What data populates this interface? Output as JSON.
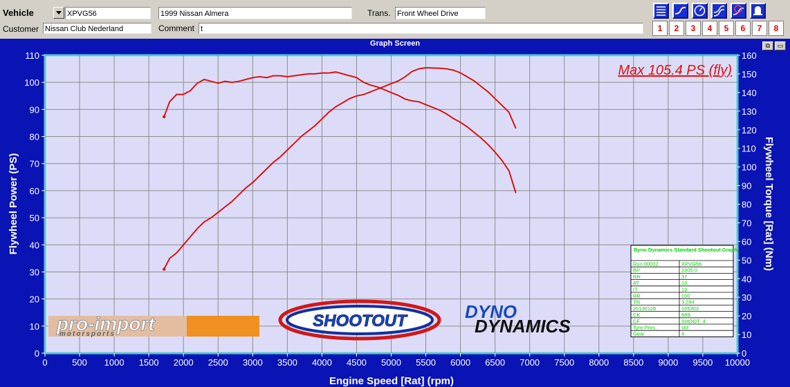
{
  "header": {
    "vehicle_label": "Vehicle",
    "vehicle_value": "XPVG56",
    "description": "1999 Nissan Almera",
    "trans_label": "Trans.",
    "trans_value": "Front Wheel Drive",
    "customer_label": "Customer",
    "customer_value": "Nissan Club Nederland",
    "comment_label": "Comment",
    "comment_value": "t"
  },
  "toolbar": {
    "icons": [
      "menu-lines-icon",
      "curve-icon",
      "gauge-icon",
      "double-curve-icon",
      "stopwatch-curve-icon",
      "bell-icon"
    ],
    "numbers": [
      "1",
      "2",
      "3",
      "4",
      "5",
      "6",
      "7",
      "8"
    ]
  },
  "window": {
    "title": "Graph Screen",
    "restore_btn": "⧉",
    "close_btn": "▭"
  },
  "brands": {
    "proimport": "pro-import",
    "proimport_sub": "motorsports",
    "shootout": "SHOOTOUT",
    "dyno_top": "DYNO",
    "dyno_bottom": "DYNAMICS"
  },
  "colors": {
    "background": "#0a14b4",
    "plot_bg": "#dcdcf8",
    "plot_border": "#4ce8f0",
    "curve": "#dd1111",
    "axis_text": "#ffffff",
    "info_text": "#00d000"
  },
  "chart_data": {
    "type": "line",
    "annotation": "Max 105.4 PS (fly)",
    "xlabel": "Engine Speed [Rat] (rpm)",
    "ylabel": "Flywheel Power (PS)",
    "y2label": "Flywheel Torque [Rat] (Nm)",
    "xlim": [
      0,
      10000
    ],
    "ylim": [
      0,
      110
    ],
    "y2lim": [
      0,
      160
    ],
    "x_ticks": [
      0,
      500,
      1000,
      1500,
      2000,
      2500,
      3000,
      3500,
      4000,
      4500,
      5000,
      5500,
      6000,
      6500,
      7000,
      7500,
      8000,
      8500,
      9000,
      9500,
      10000
    ],
    "y_ticks": [
      0,
      10,
      20,
      30,
      40,
      50,
      60,
      70,
      80,
      90,
      100,
      110
    ],
    "y2_ticks": [
      0,
      10,
      20,
      30,
      40,
      50,
      60,
      70,
      80,
      90,
      100,
      110,
      120,
      130,
      140,
      150,
      160
    ],
    "grid": true,
    "series": [
      {
        "axis": "left",
        "x": [
          1720,
          1800,
          1900,
          2000,
          2100,
          2200,
          2300,
          2400,
          2500,
          2600,
          2700,
          2800,
          2900,
          3000,
          3100,
          3200,
          3300,
          3400,
          3500,
          3600,
          3700,
          3800,
          3900,
          4000,
          4100,
          4200,
          4300,
          4400,
          4500,
          4600,
          4700,
          4800,
          4900,
          5000,
          5100,
          5200,
          5300,
          5400,
          5500,
          5600,
          5700,
          5800,
          5900,
          6000,
          6100,
          6200,
          6300,
          6400,
          6500,
          6600,
          6700,
          6800
        ],
        "y": [
          31,
          35,
          37,
          40,
          43,
          46,
          48.5,
          50,
          52,
          54,
          56,
          58.5,
          61,
          63,
          65.5,
          68,
          70.5,
          72.5,
          75,
          77.5,
          80,
          82,
          84,
          86.5,
          89,
          91,
          92.5,
          94,
          95,
          95.5,
          96.5,
          97.5,
          98.5,
          99.5,
          100.5,
          102,
          104,
          105,
          105.4,
          105.3,
          105.2,
          105,
          104.5,
          103.5,
          102,
          100.5,
          98.5,
          96.5,
          94,
          91.5,
          89,
          83
        ]
      },
      {
        "axis": "right",
        "x": [
          1720,
          1800,
          1900,
          2000,
          2100,
          2200,
          2300,
          2400,
          2500,
          2600,
          2700,
          2800,
          2900,
          3000,
          3100,
          3200,
          3300,
          3400,
          3500,
          3600,
          3700,
          3800,
          3900,
          4000,
          4100,
          4200,
          4300,
          4400,
          4500,
          4600,
          4700,
          4800,
          4900,
          5000,
          5100,
          5200,
          5300,
          5400,
          5500,
          5600,
          5700,
          5800,
          5900,
          6000,
          6100,
          6200,
          6300,
          6400,
          6500,
          6600,
          6700,
          6800
        ],
        "y": [
          127,
          135,
          139,
          139,
          141,
          145,
          147,
          146,
          145,
          146,
          145.5,
          146,
          147,
          148,
          148.5,
          148,
          149,
          149,
          148.5,
          149,
          149.5,
          150,
          150,
          150.5,
          150.5,
          151,
          150,
          149,
          148,
          145.5,
          144,
          143,
          141.5,
          140,
          138.5,
          136.5,
          135.5,
          135,
          133.5,
          132,
          130.5,
          128.5,
          126,
          124,
          121.5,
          118.5,
          115.5,
          112,
          108,
          103.5,
          98,
          86
        ]
      }
    ]
  },
  "info_table": {
    "title": "Dyno Dynamics Standard Shootout Graph.",
    "rows": [
      [
        "Run 00002",
        "XPVG56"
      ],
      [
        "BP",
        "1005.0"
      ],
      [
        "RH",
        "37"
      ],
      [
        "AT",
        "10"
      ],
      [
        "IT",
        "19"
      ],
      [
        "RR",
        "100"
      ],
      [
        "TN",
        "3,284"
      ],
      [
        "20130126",
        "105303"
      ],
      [
        "CK",
        "689"
      ],
      [
        "CF",
        "SHOOT_4"
      ],
      [
        "Tyre Pres.",
        "std"
      ],
      [
        "Gear",
        "4"
      ]
    ]
  }
}
